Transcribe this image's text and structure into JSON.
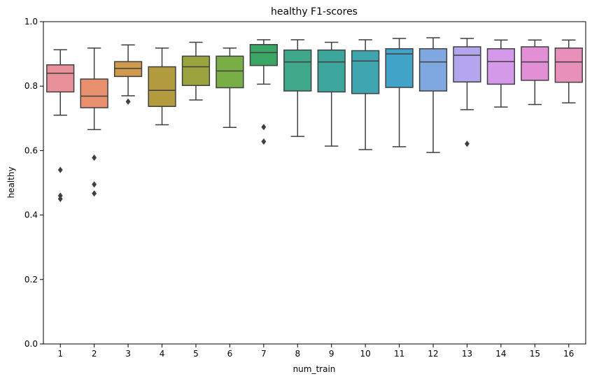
{
  "chart_data": {
    "type": "box",
    "title": "healthy F1-scores",
    "xlabel": "num_train",
    "ylabel": "healthy",
    "ylim": [
      0.0,
      1.0
    ],
    "yticks": [
      "0.0",
      "0.2",
      "0.4",
      "0.6",
      "0.8",
      "1.0"
    ],
    "ytick_values": [
      0.0,
      0.2,
      0.4,
      0.6,
      0.8,
      1.0
    ],
    "grid": false,
    "categories": [
      "1",
      "2",
      "3",
      "4",
      "5",
      "6",
      "7",
      "8",
      "9",
      "10",
      "11",
      "12",
      "13",
      "14",
      "15",
      "16"
    ],
    "boxes": [
      {
        "whislo": 0.71,
        "q1": 0.782,
        "med": 0.84,
        "q3": 0.866,
        "whishi": 0.913,
        "fliers": [
          0.54,
          0.46,
          0.45
        ],
        "color": "#e8919b"
      },
      {
        "whislo": 0.665,
        "q1": 0.733,
        "med": 0.769,
        "q3": 0.822,
        "whishi": 0.918,
        "fliers": [
          0.578,
          0.495,
          0.467
        ],
        "color": "#e8906e"
      },
      {
        "whislo": 0.77,
        "q1": 0.83,
        "med": 0.855,
        "q3": 0.876,
        "whishi": 0.928,
        "fliers": [
          0.752
        ],
        "color": "#d09a4e"
      },
      {
        "whislo": 0.68,
        "q1": 0.737,
        "med": 0.787,
        "q3": 0.86,
        "whishi": 0.918,
        "fliers": [],
        "color": "#b39b40"
      },
      {
        "whislo": 0.757,
        "q1": 0.802,
        "med": 0.86,
        "q3": 0.893,
        "whishi": 0.936,
        "fliers": [],
        "color": "#9ba33f"
      },
      {
        "whislo": 0.672,
        "q1": 0.795,
        "med": 0.847,
        "q3": 0.893,
        "whishi": 0.918,
        "fliers": [],
        "color": "#78ae45"
      },
      {
        "whislo": 0.806,
        "q1": 0.864,
        "med": 0.904,
        "q3": 0.929,
        "whishi": 0.944,
        "fliers": [
          0.673,
          0.628
        ],
        "color": "#3ba565"
      },
      {
        "whislo": 0.644,
        "q1": 0.785,
        "med": 0.875,
        "q3": 0.912,
        "whishi": 0.944,
        "fliers": [],
        "color": "#3fa78a"
      },
      {
        "whislo": 0.614,
        "q1": 0.782,
        "med": 0.875,
        "q3": 0.912,
        "whishi": 0.936,
        "fliers": [],
        "color": "#3ca59c"
      },
      {
        "whislo": 0.603,
        "q1": 0.777,
        "med": 0.878,
        "q3": 0.91,
        "whishi": 0.944,
        "fliers": [],
        "color": "#3fa6b0"
      },
      {
        "whislo": 0.612,
        "q1": 0.796,
        "med": 0.9,
        "q3": 0.916,
        "whishi": 0.948,
        "fliers": [],
        "color": "#41a3c7"
      },
      {
        "whislo": 0.594,
        "q1": 0.785,
        "med": 0.875,
        "q3": 0.916,
        "whishi": 0.95,
        "fliers": [],
        "color": "#80a8e0"
      },
      {
        "whislo": 0.727,
        "q1": 0.813,
        "med": 0.896,
        "q3": 0.922,
        "whishi": 0.948,
        "fliers": [
          0.621
        ],
        "color": "#b4a6ee"
      },
      {
        "whislo": 0.735,
        "q1": 0.806,
        "med": 0.876,
        "q3": 0.916,
        "whishi": 0.943,
        "fliers": [],
        "color": "#d499e8"
      },
      {
        "whislo": 0.743,
        "q1": 0.818,
        "med": 0.875,
        "q3": 0.922,
        "whishi": 0.943,
        "fliers": [],
        "color": "#e38fd6"
      },
      {
        "whislo": 0.748,
        "q1": 0.812,
        "med": 0.875,
        "q3": 0.918,
        "whishi": 0.943,
        "fliers": [],
        "color": "#e88fba"
      }
    ],
    "line_color": "#3f3f3f"
  }
}
